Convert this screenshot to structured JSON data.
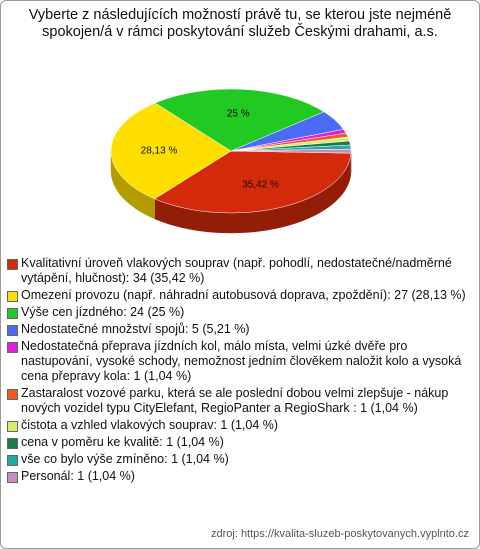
{
  "chart_data": {
    "type": "pie",
    "title": "Vyberte z následujících možností právě tu, se kterou jste nejméně spokojen/á v rámci poskytování služeb Českými drahami, a.s.",
    "categories": [
      "Kvalitativní úroveň vlakových souprav (např. pohodlí, nedostatečné/nadměrné vytápění, hlučnost): 34 (35,42 %)",
      "Omezení provozu (např. náhradní autobusová doprava, zpoždění): 27 (28,13 %)",
      "Výše cen jízdného: 24 (25 %)",
      "Nedostatečné množství spojů: 5 (5,21 %)",
      "Nedostatečná přeprava jízdních kol,  málo místa,  velmi úzké dvěře pro nastupování,  vysoké schody,   nemožnost  jedním člověkem naložit kolo   a  vysoká cena  přepravy kola: 1 (1,04 %)",
      "Zastaralost vozové parku, která se ale poslední dobou velmi zlepšuje - nákup nových vozidel typu CityElefant, RegioPanter a RegioShark : 1 (1,04 %)",
      "čistota a vzhled vlakových souprav: 1 (1,04 %)",
      "cena v poměru ke kvalitě: 1 (1,04 %)",
      "vše co bylo výše zmíněno: 1 (1,04 %)",
      "Personál: 1 (1,04 %)"
    ],
    "values": [
      35.42,
      28.13,
      25,
      5.21,
      1.04,
      1.04,
      1.04,
      1.04,
      1.04,
      1.04
    ],
    "value_labels": [
      "35,42 %",
      "28,13 %",
      "25 %",
      null,
      null,
      null,
      null,
      null,
      null,
      null
    ],
    "colors": [
      "#d42a0c",
      "#ffdf00",
      "#22c922",
      "#4a6cf5",
      "#e020e0",
      "#f25a24",
      "#d4ef70",
      "#1c7a4c",
      "#23a9a0",
      "#c88ac4"
    ],
    "source": "zdroj: https://kvalita-sluzeb-poskytovanych.vyplnto.cz"
  }
}
